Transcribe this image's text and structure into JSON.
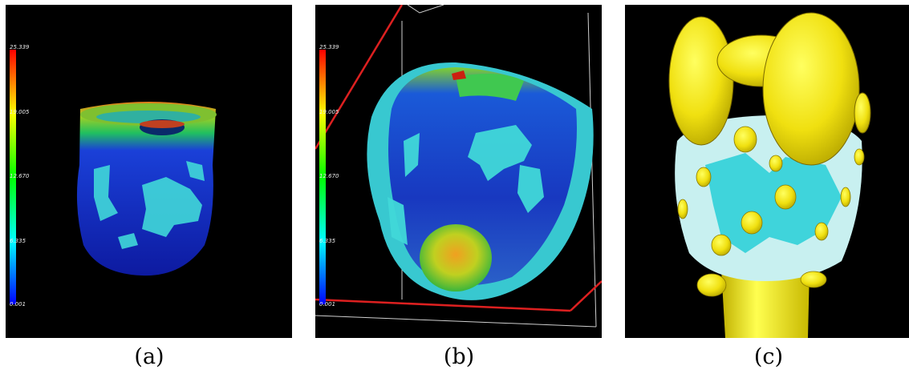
{
  "colorbar": {
    "ticks": [
      "25.339",
      "19.005",
      "12.670",
      "6.335",
      "0.001"
    ]
  },
  "panels": [
    {
      "caption": "(a)",
      "view": "heart mesh colored by scalar field"
    },
    {
      "caption": "(b)",
      "view": "heart mesh with inner surface and bounding box"
    },
    {
      "caption": "(c)",
      "view": "glyph ellipsoids over mesh"
    }
  ]
}
